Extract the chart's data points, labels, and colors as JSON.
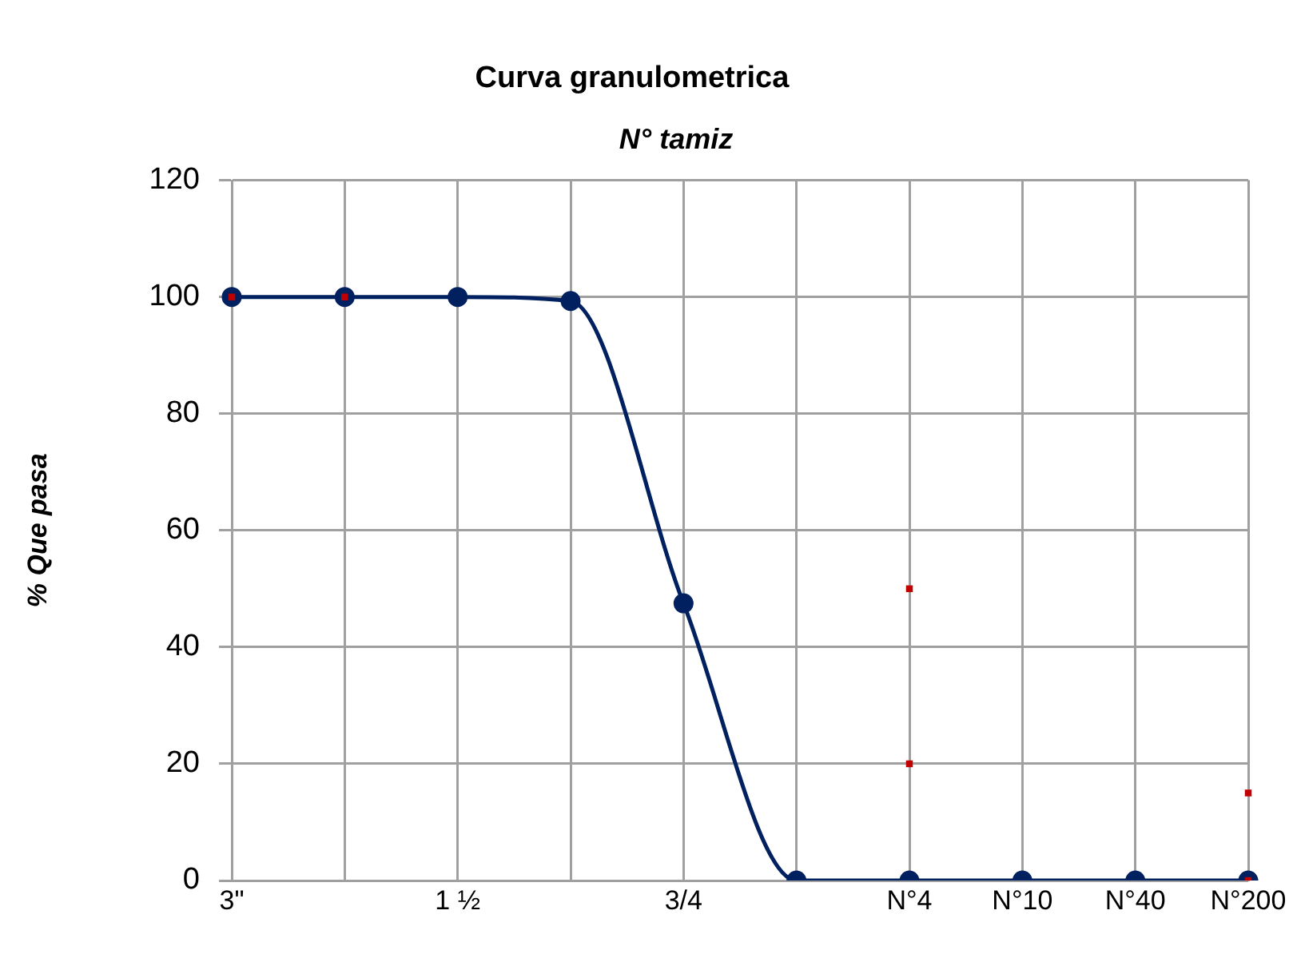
{
  "chart_data": {
    "type": "line",
    "title": "Curva granulometrica",
    "xlabel": "N° tamiz",
    "ylabel": "% Que pasa",
    "ylim": [
      0,
      120
    ],
    "yticks": [
      0,
      20,
      40,
      60,
      80,
      100,
      120
    ],
    "categories": [
      "3\"",
      null,
      "1 ½",
      null,
      "3/4",
      null,
      "N°4",
      "N°10",
      "N°40",
      "N°200"
    ],
    "grid": true,
    "legend": false,
    "series": [
      {
        "color": "#002060",
        "marker": "circle",
        "values": [
          100,
          100,
          100,
          99.3,
          47.5,
          0,
          0,
          0,
          0,
          0
        ]
      },
      {
        "type": "scatter",
        "color": "#c00000",
        "marker": "square",
        "values": [
          100,
          100,
          null,
          null,
          null,
          null,
          50,
          null,
          null,
          15
        ]
      },
      {
        "type": "scatter",
        "color": "#c00000",
        "marker": "square",
        "values": [
          null,
          null,
          null,
          null,
          null,
          null,
          20,
          null,
          null,
          0
        ]
      }
    ]
  }
}
